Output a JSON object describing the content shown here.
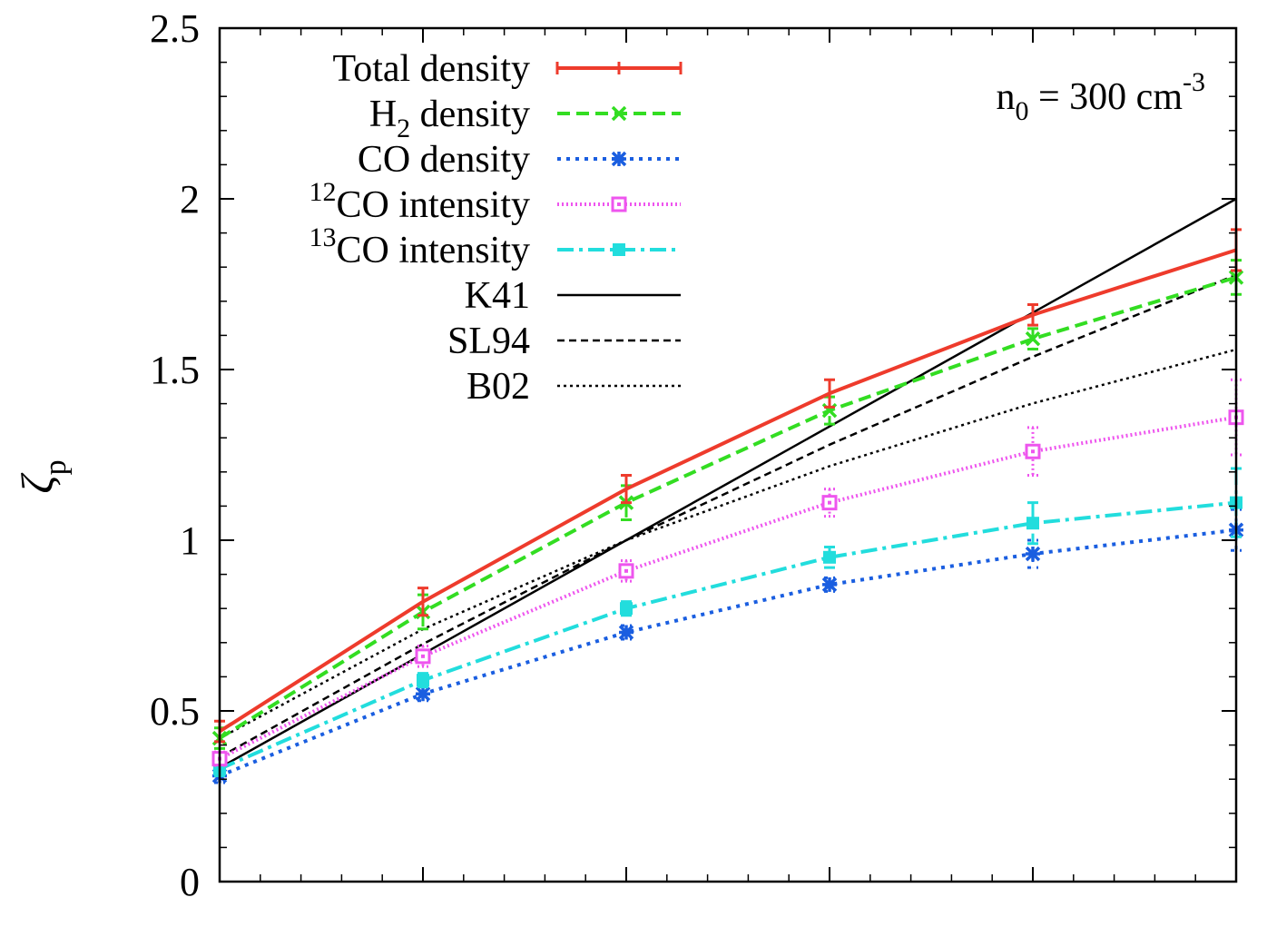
{
  "chart_data": {
    "type": "line",
    "title": "",
    "xlabel": "",
    "ylabel": "ζ",
    "ylabel_subscript": "p",
    "ylim": [
      0,
      2.5
    ],
    "xlim": [
      0.5,
      5.5
    ],
    "y_ticks": [
      "0",
      "0.5",
      "1",
      "1.5",
      "2",
      "2.5"
    ],
    "x_tick_labels_shown": false,
    "grid": false,
    "legend_position": "top-left",
    "annotation": {
      "prefix": "n",
      "subscript": "0",
      "mid": " = 300 cm",
      "superscript": "-3"
    },
    "x": [
      0.5,
      1.5,
      2.5,
      3.5,
      4.5,
      5.5
    ],
    "series": [
      {
        "name": "Total density",
        "pre": "",
        "sup": "",
        "main": "Total density",
        "sub": "",
        "post": "",
        "color": "#ee3b2c",
        "dash": "",
        "marker": "bar",
        "values": [
          0.44,
          0.82,
          1.15,
          1.43,
          1.66,
          1.85
        ],
        "errors": [
          0.03,
          0.04,
          0.04,
          0.04,
          0.03,
          0.06
        ]
      },
      {
        "name": "H2 density",
        "pre": "",
        "sup": "",
        "main": "H",
        "sub": "2",
        "post": " density",
        "color": "#33dd22",
        "dash": "14,7",
        "marker": "x",
        "values": [
          0.42,
          0.79,
          1.11,
          1.38,
          1.59,
          1.77
        ],
        "errors": [
          0.03,
          0.05,
          0.05,
          0.04,
          0.03,
          0.05
        ]
      },
      {
        "name": "CO density",
        "pre": "",
        "sup": "",
        "main": "CO density",
        "sub": "",
        "post": "",
        "color": "#1a5ee0",
        "dash": "4,6",
        "marker": "star",
        "values": [
          0.31,
          0.55,
          0.73,
          0.87,
          0.96,
          1.03
        ],
        "errors": [
          0.02,
          0.02,
          0.02,
          0.02,
          0.04,
          0.06
        ]
      },
      {
        "name": "12CO intensity",
        "pre": "",
        "sup": "12",
        "main": "CO intensity",
        "sub": "",
        "post": "",
        "color": "#ee55ee",
        "dash": "2,3",
        "marker": "square-open",
        "values": [
          0.36,
          0.66,
          0.91,
          1.11,
          1.26,
          1.36
        ],
        "errors": [
          0.02,
          0.03,
          0.03,
          0.04,
          0.07,
          0.11
        ]
      },
      {
        "name": "13CO intensity",
        "pre": "",
        "sup": "13",
        "main": "CO intensity",
        "sub": "",
        "post": "",
        "color": "#22dddd",
        "dash": "18,6,4,6",
        "marker": "square-filled",
        "values": [
          0.33,
          0.59,
          0.8,
          0.95,
          1.05,
          1.11
        ],
        "errors": [
          0.02,
          0.02,
          0.02,
          0.03,
          0.06,
          0.1
        ]
      },
      {
        "name": "K41",
        "pre": "",
        "sup": "",
        "main": "K41",
        "sub": "",
        "post": "",
        "color": "#000000",
        "dash": "",
        "marker": "none",
        "values": [
          0.3333,
          0.6667,
          1.0,
          1.3333,
          1.6667,
          2.0
        ],
        "errors": []
      },
      {
        "name": "SL94",
        "pre": "",
        "sup": "",
        "main": "SL94",
        "sub": "",
        "post": "",
        "color": "#000000",
        "dash": "8,5",
        "marker": "none",
        "values": [
          0.3647,
          0.6959,
          1.0,
          1.2797,
          1.5375,
          1.7772
        ],
        "errors": []
      },
      {
        "name": "B02",
        "pre": "",
        "sup": "",
        "main": "B02",
        "sub": "",
        "post": "",
        "color": "#000000",
        "dash": "3,4",
        "marker": "none",
        "values": [
          0.4198,
          0.7394,
          1.0,
          1.2171,
          1.4009,
          1.5585
        ],
        "errors": []
      }
    ]
  }
}
